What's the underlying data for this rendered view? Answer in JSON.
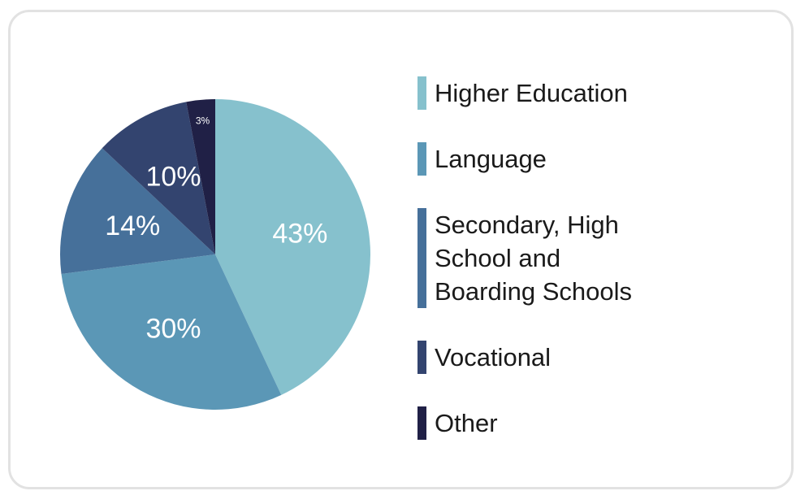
{
  "chart_data": {
    "type": "pie",
    "categories": [
      "Higher Education",
      "Language",
      "Secondary, High School and Boarding Schools",
      "Vocational",
      "Other"
    ],
    "values": [
      43,
      30,
      14,
      10,
      3
    ],
    "value_labels": [
      "43%",
      "30%",
      "14%",
      "10%",
      "3%"
    ],
    "colors": [
      "#86c1cd",
      "#5b97b6",
      "#46709a",
      "#33446f",
      "#202046"
    ],
    "legend": "right"
  }
}
